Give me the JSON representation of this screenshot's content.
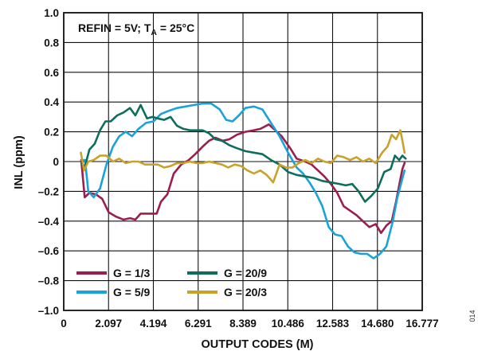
{
  "chart_data": {
    "type": "line",
    "title": "",
    "annotation": {
      "prefix": "REFIN = 5V; T",
      "subscript": "A",
      "suffix": " = 25°C"
    },
    "xlabel": "OUTPUT CODES (M)",
    "ylabel": "INL (ppm)",
    "xlim": [
      0,
      16.777
    ],
    "ylim": [
      -1.0,
      1.0
    ],
    "x_ticks": [
      0,
      2.097,
      4.194,
      6.291,
      8.389,
      10.486,
      12.583,
      14.68,
      16.777
    ],
    "x_tick_labels": [
      "0",
      "2.097",
      "4.194",
      "6.291",
      "8.389",
      "10.486",
      "12.583",
      "14.680",
      "16.777"
    ],
    "y_ticks": [
      1.0,
      0.8,
      0.6,
      0.4,
      0.2,
      0,
      -0.2,
      -0.4,
      -0.6,
      -0.8,
      -1.0
    ],
    "y_tick_labels": [
      "1.0",
      "0.8",
      "0.6",
      "0.4",
      "0.2",
      "0",
      "–0.2",
      "–0.4",
      "–0.6",
      "–0.8",
      "–1.0"
    ],
    "grid": true,
    "legend_placement": "bottom-left",
    "figure_id": "014",
    "series": [
      {
        "name": "G = 1/3",
        "color": "#9b1e4e",
        "points": [
          [
            0.82,
            0.01
          ],
          [
            0.98,
            -0.24
          ],
          [
            1.2,
            -0.21
          ],
          [
            1.5,
            -0.22
          ],
          [
            1.8,
            -0.25
          ],
          [
            2.1,
            -0.34
          ],
          [
            2.45,
            -0.37
          ],
          [
            2.8,
            -0.39
          ],
          [
            3.1,
            -0.38
          ],
          [
            3.35,
            -0.39
          ],
          [
            3.6,
            -0.35
          ],
          [
            4.0,
            -0.35
          ],
          [
            4.35,
            -0.35
          ],
          [
            4.55,
            -0.27
          ],
          [
            4.85,
            -0.22
          ],
          [
            5.15,
            -0.08
          ],
          [
            5.5,
            -0.02
          ],
          [
            5.85,
            0.01
          ],
          [
            6.15,
            0.05
          ],
          [
            6.5,
            0.1
          ],
          [
            6.8,
            0.14
          ],
          [
            7.1,
            0.16
          ],
          [
            7.45,
            0.14
          ],
          [
            7.75,
            0.15
          ],
          [
            8.1,
            0.18
          ],
          [
            8.5,
            0.2
          ],
          [
            8.9,
            0.21
          ],
          [
            9.2,
            0.22
          ],
          [
            9.6,
            0.25
          ],
          [
            9.9,
            0.21
          ],
          [
            10.2,
            0.17
          ],
          [
            10.6,
            0.09
          ],
          [
            10.9,
            0.02
          ],
          [
            11.3,
            0.0
          ],
          [
            11.6,
            -0.02
          ],
          [
            11.9,
            -0.06
          ],
          [
            12.2,
            -0.1
          ],
          [
            12.5,
            -0.15
          ],
          [
            12.8,
            -0.21
          ],
          [
            13.1,
            -0.3
          ],
          [
            13.4,
            -0.33
          ],
          [
            13.7,
            -0.36
          ],
          [
            14.0,
            -0.4
          ],
          [
            14.3,
            -0.44
          ],
          [
            14.6,
            -0.42
          ],
          [
            14.85,
            -0.48
          ],
          [
            15.1,
            -0.43
          ],
          [
            15.35,
            -0.4
          ],
          [
            15.55,
            -0.27
          ],
          [
            15.75,
            -0.12
          ],
          [
            15.85,
            -0.05
          ],
          [
            15.95,
            -0.01
          ]
        ]
      },
      {
        "name": "G = 5/9",
        "color": "#19a3d8",
        "points": [
          [
            0.85,
            0.01
          ],
          [
            1.0,
            0.01
          ],
          [
            1.15,
            -0.2
          ],
          [
            1.4,
            -0.24
          ],
          [
            1.7,
            -0.18
          ],
          [
            2.0,
            -0.02
          ],
          [
            2.3,
            0.1
          ],
          [
            2.6,
            0.17
          ],
          [
            2.9,
            0.2
          ],
          [
            3.2,
            0.17
          ],
          [
            3.5,
            0.22
          ],
          [
            3.85,
            0.26
          ],
          [
            4.2,
            0.27
          ],
          [
            4.55,
            0.32
          ],
          [
            4.9,
            0.34
          ],
          [
            5.3,
            0.36
          ],
          [
            5.7,
            0.37
          ],
          [
            6.1,
            0.38
          ],
          [
            6.5,
            0.39
          ],
          [
            6.9,
            0.39
          ],
          [
            7.3,
            0.35
          ],
          [
            7.6,
            0.28
          ],
          [
            7.9,
            0.27
          ],
          [
            8.2,
            0.31
          ],
          [
            8.5,
            0.36
          ],
          [
            8.9,
            0.37
          ],
          [
            9.3,
            0.35
          ],
          [
            9.7,
            0.26
          ],
          [
            10.1,
            0.17
          ],
          [
            10.5,
            0.06
          ],
          [
            10.9,
            -0.04
          ],
          [
            11.2,
            -0.08
          ],
          [
            11.5,
            -0.14
          ],
          [
            11.8,
            -0.21
          ],
          [
            12.1,
            -0.3
          ],
          [
            12.4,
            -0.44
          ],
          [
            12.7,
            -0.49
          ],
          [
            13.0,
            -0.5
          ],
          [
            13.3,
            -0.57
          ],
          [
            13.6,
            -0.61
          ],
          [
            13.9,
            -0.62
          ],
          [
            14.2,
            -0.62
          ],
          [
            14.5,
            -0.65
          ],
          [
            14.8,
            -0.62
          ],
          [
            15.1,
            -0.57
          ],
          [
            15.4,
            -0.4
          ],
          [
            15.6,
            -0.25
          ],
          [
            15.8,
            -0.14
          ],
          [
            15.95,
            -0.06
          ]
        ]
      },
      {
        "name": "G = 20/9",
        "color": "#0e6e5e",
        "points": [
          [
            0.85,
            -0.02
          ],
          [
            1.0,
            -0.03
          ],
          [
            1.2,
            0.08
          ],
          [
            1.45,
            0.12
          ],
          [
            1.7,
            0.21
          ],
          [
            1.95,
            0.27
          ],
          [
            2.2,
            0.27
          ],
          [
            2.5,
            0.31
          ],
          [
            2.8,
            0.33
          ],
          [
            3.1,
            0.36
          ],
          [
            3.35,
            0.31
          ],
          [
            3.6,
            0.38
          ],
          [
            3.9,
            0.29
          ],
          [
            4.15,
            0.3
          ],
          [
            4.4,
            0.29
          ],
          [
            4.7,
            0.28
          ],
          [
            5.0,
            0.3
          ],
          [
            5.3,
            0.24
          ],
          [
            5.6,
            0.22
          ],
          [
            5.9,
            0.21
          ],
          [
            6.2,
            0.21
          ],
          [
            6.5,
            0.21
          ],
          [
            6.8,
            0.19
          ],
          [
            7.1,
            0.15
          ],
          [
            7.4,
            0.14
          ],
          [
            7.75,
            0.11
          ],
          [
            8.1,
            0.09
          ],
          [
            8.5,
            0.07
          ],
          [
            8.9,
            0.06
          ],
          [
            9.3,
            0.05
          ],
          [
            9.7,
            0.01
          ],
          [
            10.1,
            -0.02
          ],
          [
            10.5,
            -0.07
          ],
          [
            10.9,
            -0.09
          ],
          [
            11.3,
            -0.1
          ],
          [
            11.7,
            -0.11
          ],
          [
            12.1,
            -0.13
          ],
          [
            12.5,
            -0.14
          ],
          [
            12.9,
            -0.15
          ],
          [
            13.2,
            -0.16
          ],
          [
            13.5,
            -0.15
          ],
          [
            13.8,
            -0.2
          ],
          [
            14.1,
            -0.27
          ],
          [
            14.4,
            -0.23
          ],
          [
            14.7,
            -0.18
          ],
          [
            15.0,
            -0.07
          ],
          [
            15.3,
            -0.05
          ],
          [
            15.5,
            0.04
          ],
          [
            15.7,
            0.01
          ],
          [
            15.85,
            0.04
          ],
          [
            16.0,
            0.02
          ]
        ]
      },
      {
        "name": "G = 20/3",
        "color": "#c9a227",
        "points": [
          [
            0.8,
            0.06
          ],
          [
            0.95,
            -0.06
          ],
          [
            1.15,
            0.0
          ],
          [
            1.4,
            0.01
          ],
          [
            1.7,
            0.04
          ],
          [
            2.0,
            0.04
          ],
          [
            2.3,
            0.0
          ],
          [
            2.6,
            0.02
          ],
          [
            2.9,
            -0.01
          ],
          [
            3.2,
            0.0
          ],
          [
            3.5,
            0.0
          ],
          [
            3.8,
            -0.02
          ],
          [
            4.1,
            -0.02
          ],
          [
            4.4,
            -0.02
          ],
          [
            4.7,
            -0.04
          ],
          [
            5.0,
            -0.03
          ],
          [
            5.3,
            -0.01
          ],
          [
            5.6,
            -0.01
          ],
          [
            5.9,
            0.0
          ],
          [
            6.2,
            -0.01
          ],
          [
            6.5,
            -0.01
          ],
          [
            6.8,
            0.0
          ],
          [
            7.1,
            -0.01
          ],
          [
            7.4,
            -0.02
          ],
          [
            7.7,
            -0.04
          ],
          [
            8.0,
            -0.02
          ],
          [
            8.3,
            -0.03
          ],
          [
            8.6,
            -0.06
          ],
          [
            8.9,
            -0.08
          ],
          [
            9.2,
            -0.06
          ],
          [
            9.5,
            -0.09
          ],
          [
            9.8,
            -0.14
          ],
          [
            10.1,
            -0.02
          ],
          [
            10.4,
            -0.04
          ],
          [
            10.7,
            -0.04
          ],
          [
            11.0,
            -0.01
          ],
          [
            11.3,
            0.01
          ],
          [
            11.6,
            -0.01
          ],
          [
            11.9,
            0.02
          ],
          [
            12.2,
            0.0
          ],
          [
            12.5,
            -0.01
          ],
          [
            12.8,
            0.04
          ],
          [
            13.1,
            0.03
          ],
          [
            13.4,
            0.01
          ],
          [
            13.7,
            0.03
          ],
          [
            14.0,
            0.0
          ],
          [
            14.3,
            0.02
          ],
          [
            14.6,
            -0.01
          ],
          [
            14.9,
            0.06
          ],
          [
            15.15,
            0.1
          ],
          [
            15.35,
            0.18
          ],
          [
            15.55,
            0.15
          ],
          [
            15.75,
            0.21
          ],
          [
            15.85,
            0.14
          ],
          [
            15.95,
            0.06
          ]
        ]
      }
    ]
  }
}
